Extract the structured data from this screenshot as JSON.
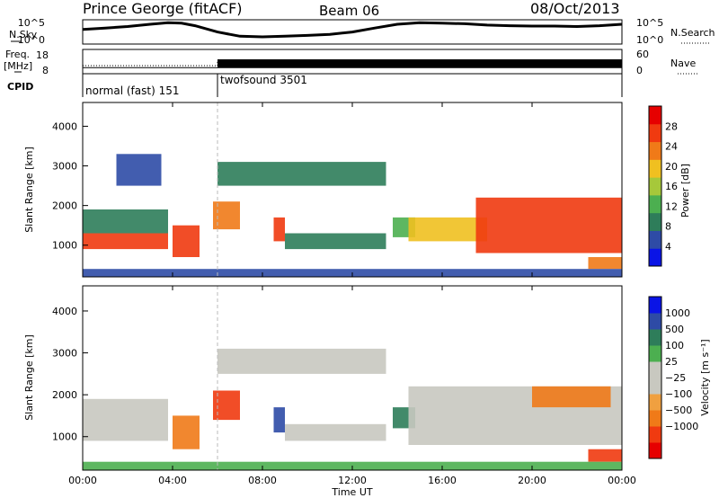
{
  "header": {
    "station": "Prince George (fitACF)",
    "beam": "Beam 06",
    "date": "08/Oct/2013"
  },
  "labels": {
    "nsky": "N.Sky",
    "nsearch": "N.Search",
    "freq": "Freq.",
    "freq_unit": "[MHz]",
    "nave": "Nave",
    "cpid": "CPID",
    "xlabel": "Time UT",
    "ylabel": "Slant Range [km]",
    "power_label": "Power [dB]",
    "velocity_label": "Velocity [m s⁻¹]",
    "noise_tick_hi": "10^5",
    "noise_tick_lo": "10^0",
    "freq_tick_hi": "18",
    "freq_tick_lo": "8",
    "nave_tick_hi": "60",
    "nave_tick_lo": "0"
  },
  "cpid_segments": [
    {
      "label": "normal (fast) 151",
      "start_hour": 0,
      "end_hour": 6
    },
    {
      "label": "twofsound 3501",
      "start_hour": 6,
      "end_hour": 24
    }
  ],
  "colors": {
    "power": [
      "#0a14e6",
      "#2e4ba6",
      "#2e7d5a",
      "#4caf50",
      "#a6c83a",
      "#f0c020",
      "#f07a18",
      "#f03a10",
      "#e60000"
    ],
    "velocity": [
      "#e60000",
      "#f03a10",
      "#f07a18",
      "#f0a040",
      "#c8c8c0",
      "#c8c8c0",
      "#4caf50",
      "#2e7d5a",
      "#2e4ba6",
      "#0a14e6"
    ]
  },
  "chart_data": [
    {
      "type": "line",
      "panel": "noise",
      "series": [
        {
          "name": "N.Sky",
          "x": [
            0,
            1,
            2,
            3,
            3.8,
            4.4,
            5,
            6,
            7,
            8,
            9,
            10,
            11,
            12,
            13,
            14,
            15,
            16,
            17,
            18,
            19,
            20,
            21,
            22,
            23,
            24
          ],
          "y": [
            1000,
            2000,
            4000,
            12000,
            25000,
            20000,
            6000,
            300,
            40,
            30,
            40,
            60,
            100,
            300,
            2000,
            12000,
            25000,
            20000,
            15000,
            8000,
            6000,
            5000,
            5000,
            4000,
            6000,
            12000
          ]
        }
      ],
      "yscale": "log",
      "ylim": [
        1,
        100000
      ]
    },
    {
      "type": "line",
      "panel": "frequency",
      "series": [
        {
          "name": "Freq.",
          "x": [
            0,
            6,
            6,
            24
          ],
          "y": [
            10.5,
            10.5,
            10.5,
            10.5
          ]
        },
        {
          "name": "Nave",
          "x": [
            0,
            6,
            6,
            24
          ],
          "y": [
            20,
            20,
            28,
            28
          ]
        }
      ],
      "ylim": [
        8,
        18
      ],
      "y2lim": [
        0,
        60
      ]
    },
    {
      "type": "heatmap",
      "panel": "power",
      "x_ticks": [
        "00:00",
        "04:00",
        "08:00",
        "12:00",
        "16:00",
        "20:00",
        "00:00"
      ],
      "xlim": [
        0,
        24
      ],
      "ylim": [
        200,
        4600
      ],
      "y_ticks": [
        1000,
        2000,
        3000,
        4000
      ],
      "colorbar_ticks": [
        4,
        8,
        12,
        16,
        20,
        24,
        28
      ],
      "colorbar_range": [
        0,
        32
      ],
      "regions": [
        {
          "t0": 0.0,
          "t1": 3.8,
          "r0": 900,
          "r1": 1300,
          "level": 26
        },
        {
          "t0": 0.0,
          "t1": 3.8,
          "r0": 1300,
          "r1": 1900,
          "level": 10
        },
        {
          "t0": 1.5,
          "t1": 3.5,
          "r0": 2500,
          "r1": 3300,
          "level": 5
        },
        {
          "t0": 4.0,
          "t1": 5.2,
          "r0": 700,
          "r1": 1500,
          "level": 28
        },
        {
          "t0": 5.8,
          "t1": 7.0,
          "r0": 1400,
          "r1": 2100,
          "level": 24
        },
        {
          "t0": 6.0,
          "t1": 13.5,
          "r0": 2500,
          "r1": 3100,
          "level": 10
        },
        {
          "t0": 8.5,
          "t1": 9.0,
          "r0": 1100,
          "r1": 1700,
          "level": 26
        },
        {
          "t0": 9.0,
          "t1": 13.5,
          "r0": 900,
          "r1": 1300,
          "level": 8
        },
        {
          "t0": 13.8,
          "t1": 14.8,
          "r0": 1200,
          "r1": 1700,
          "level": 14
        },
        {
          "t0": 14.5,
          "t1": 18.0,
          "r0": 1100,
          "r1": 1700,
          "level": 18
        },
        {
          "t0": 17.5,
          "t1": 24.0,
          "r0": 800,
          "r1": 2200,
          "level": 28
        },
        {
          "t0": 22.5,
          "t1": 24.0,
          "r0": 400,
          "r1": 700,
          "level": 22
        },
        {
          "t0": 0.0,
          "t1": 24.0,
          "r0": 200,
          "r1": 400,
          "level": 6
        }
      ]
    },
    {
      "type": "heatmap",
      "panel": "velocity",
      "x_ticks": [
        "00:00",
        "04:00",
        "08:00",
        "12:00",
        "16:00",
        "20:00",
        "00:00"
      ],
      "xlim": [
        0,
        24
      ],
      "ylim": [
        200,
        4600
      ],
      "y_ticks": [
        1000,
        2000,
        3000,
        4000
      ],
      "colorbar_ticks": [
        "1000",
        "500",
        "100",
        "25",
        "−25",
        "−100",
        "−500",
        "−1000"
      ],
      "regions": [
        {
          "t0": 0.0,
          "t1": 3.8,
          "r0": 900,
          "r1": 1900,
          "vel": 0
        },
        {
          "t0": 4.0,
          "t1": 5.2,
          "r0": 700,
          "r1": 1500,
          "vel": -300
        },
        {
          "t0": 5.8,
          "t1": 7.0,
          "r0": 1400,
          "r1": 2100,
          "vel": -800
        },
        {
          "t0": 6.0,
          "t1": 13.5,
          "r0": 2500,
          "r1": 3100,
          "vel": 0
        },
        {
          "t0": 8.5,
          "t1": 9.0,
          "r0": 1100,
          "r1": 1700,
          "vel": 800
        },
        {
          "t0": 9.0,
          "t1": 13.5,
          "r0": 900,
          "r1": 1300,
          "vel": 0
        },
        {
          "t0": 13.8,
          "t1": 14.8,
          "r0": 1200,
          "r1": 1700,
          "vel": 300
        },
        {
          "t0": 14.5,
          "t1": 24.0,
          "r0": 800,
          "r1": 2200,
          "vel": 0
        },
        {
          "t0": 20.0,
          "t1": 23.5,
          "r0": 1700,
          "r1": 2200,
          "vel": -300
        },
        {
          "t0": 22.5,
          "t1": 24.0,
          "r0": 400,
          "r1": 700,
          "vel": -500
        },
        {
          "t0": 0.0,
          "t1": 24.0,
          "r0": 200,
          "r1": 400,
          "vel": 100
        }
      ]
    }
  ]
}
